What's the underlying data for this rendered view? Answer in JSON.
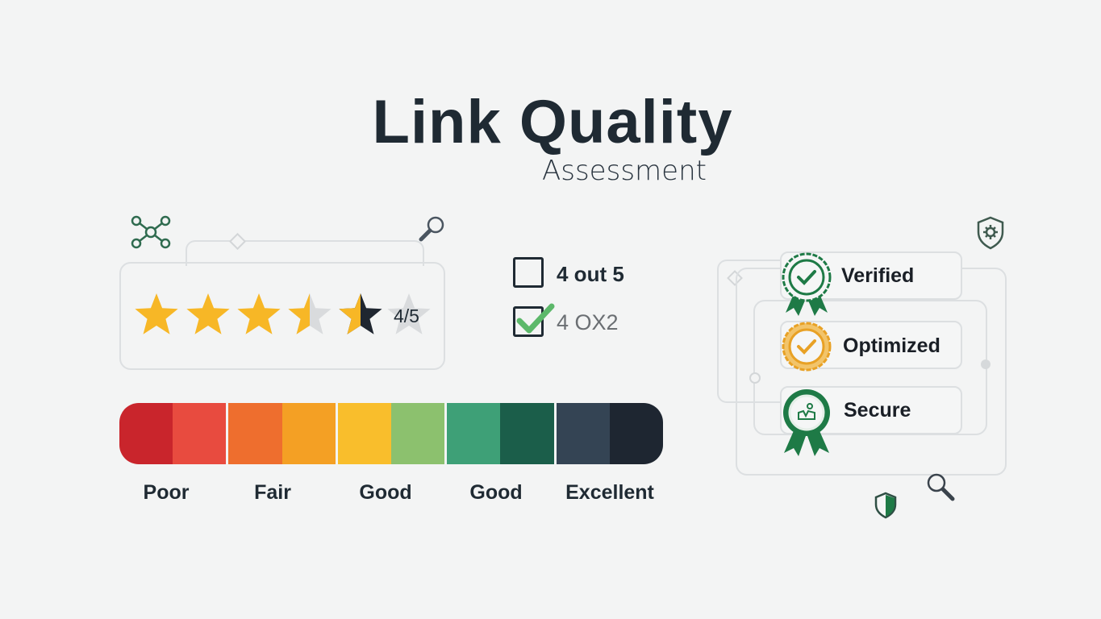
{
  "header": {
    "title": "Link Quality",
    "subtitle": "Assessment"
  },
  "rating": {
    "value": 4,
    "max": 5,
    "label": "4/5",
    "stars": [
      "full",
      "full",
      "full",
      "half-gray",
      "half-dark",
      "empty"
    ],
    "colors": {
      "star": "#f7b726",
      "star_empty": "#d9dbdd",
      "star_dark": "#1f2630"
    }
  },
  "checklist": [
    {
      "label": "4 out 5",
      "checked": false
    },
    {
      "label": "4 OX2",
      "checked": true
    }
  ],
  "scale": {
    "segments": [
      "#c9252c",
      "#e84b3f",
      "#ee6e2e",
      "#f4a024",
      "#f9be2c",
      "#8cc16e",
      "#3ea077",
      "#1b5e4a",
      "#344454",
      "#1e2631"
    ],
    "labels": [
      "Poor",
      "Fair",
      "Good",
      "Good",
      "Excellent"
    ]
  },
  "badges": [
    {
      "label": "Verified",
      "icon": "award-check-icon",
      "color": "#1e7a46"
    },
    {
      "label": "Optimized",
      "icon": "award-check-icon",
      "color": "#e8a125"
    },
    {
      "label": "Secure",
      "icon": "award-people-icon",
      "color": "#1e7a46"
    }
  ],
  "icons": [
    "network-icon",
    "search-icon",
    "shield-gear-icon",
    "shield-icon",
    "search-icon"
  ]
}
